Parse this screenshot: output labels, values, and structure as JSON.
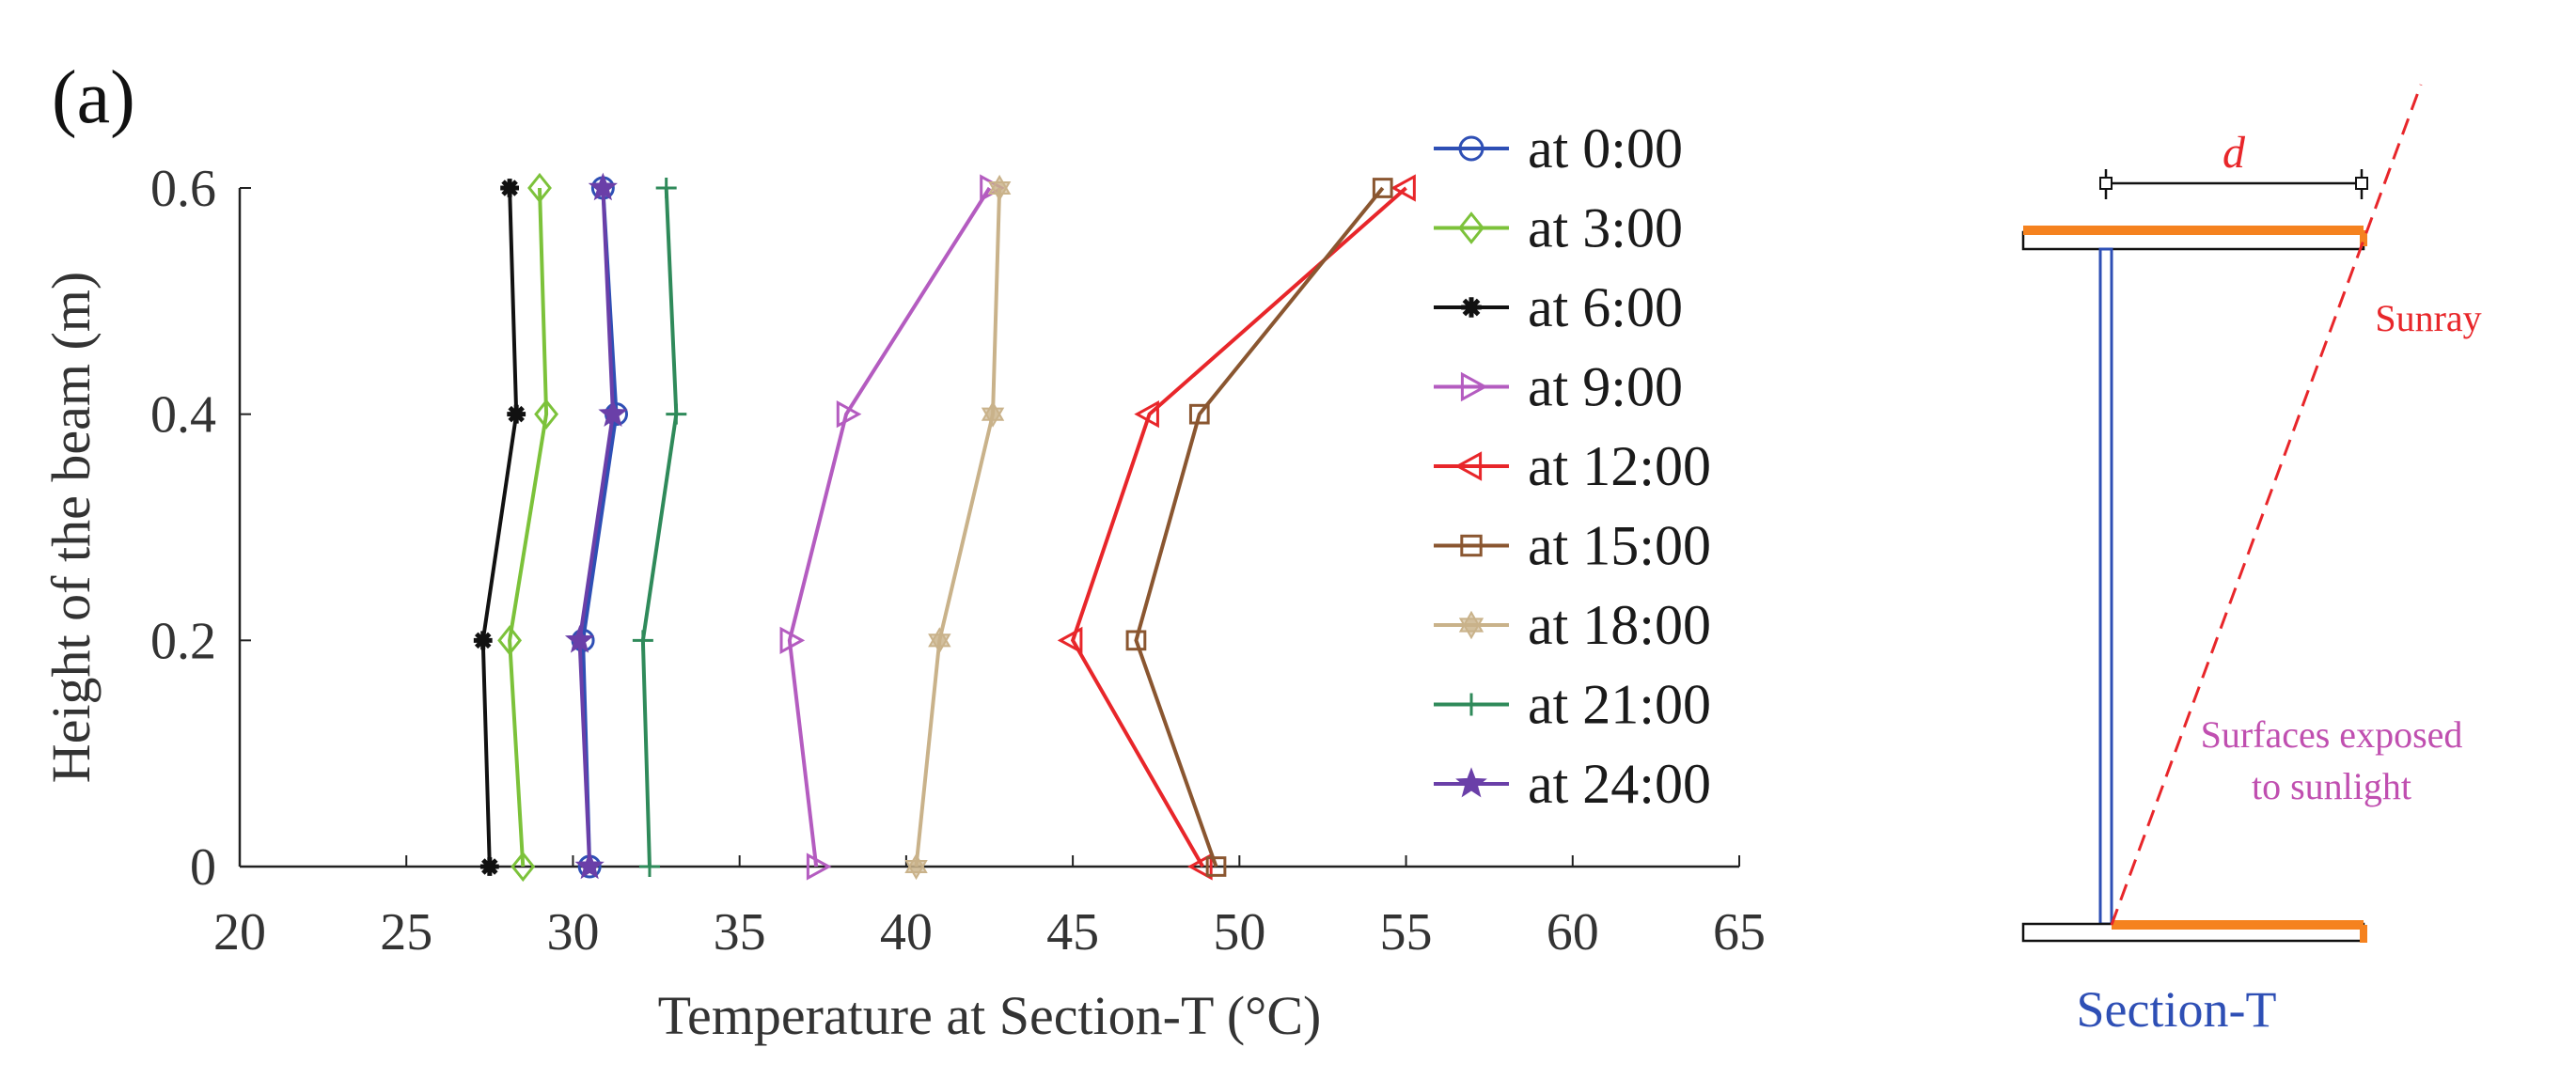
{
  "panel_label": "(a)",
  "chart_data": {
    "type": "line",
    "title": "",
    "xlabel": "Temperature at Section-T (°C)",
    "ylabel": "Height of the beam (m)",
    "xlim": [
      20,
      65
    ],
    "ylim": [
      0,
      0.6
    ],
    "x_ticks": [
      "20",
      "25",
      "30",
      "35",
      "40",
      "45",
      "50",
      "55",
      "60",
      "65"
    ],
    "y_ticks": [
      "0",
      "0.2",
      "0.4",
      "0.6"
    ],
    "x_tick_values": [
      20,
      25,
      30,
      35,
      40,
      45,
      50,
      55,
      60,
      65
    ],
    "y_tick_values": [
      0,
      0.2,
      0.4,
      0.6
    ],
    "heights": [
      0,
      0.2,
      0.4,
      0.6
    ],
    "legend_position": "right",
    "series": [
      {
        "name": "at 0:00",
        "color": "#2e4fb5",
        "marker": "circle",
        "values": [
          30.5,
          30.3,
          31.3,
          30.9
        ]
      },
      {
        "name": "at 3:00",
        "color": "#7cc23a",
        "marker": "diamond",
        "values": [
          28.5,
          28.1,
          29.2,
          29.0
        ]
      },
      {
        "name": "at 6:00",
        "color": "#111111",
        "marker": "asterisk",
        "values": [
          27.5,
          27.3,
          28.3,
          28.1
        ]
      },
      {
        "name": "at 9:00",
        "color": "#b45cc0",
        "marker": "triangle-right",
        "values": [
          37.3,
          36.5,
          38.2,
          42.5
        ]
      },
      {
        "name": "at 12:00",
        "color": "#e8262a",
        "marker": "triangle-left",
        "values": [
          48.9,
          45.0,
          47.3,
          55.0
        ]
      },
      {
        "name": "at 15:00",
        "color": "#8a5630",
        "marker": "square",
        "values": [
          49.3,
          46.9,
          48.8,
          54.3
        ]
      },
      {
        "name": "at 18:00",
        "color": "#c9b28a",
        "marker": "hexagram",
        "values": [
          40.3,
          41.0,
          42.6,
          42.8
        ]
      },
      {
        "name": "at 21:00",
        "color": "#2f8a5a",
        "marker": "plus",
        "values": [
          32.3,
          32.1,
          33.1,
          32.8
        ]
      },
      {
        "name": "at 24:00",
        "color": "#6a3fa8",
        "marker": "star",
        "values": [
          30.5,
          30.2,
          31.2,
          30.9
        ]
      }
    ]
  },
  "diagram": {
    "d_label": "d",
    "sunray_label": "Sunray",
    "surfaces_label_line1": "Surfaces exposed",
    "surfaces_label_line2": "to sunlight",
    "section_label": "Section-T",
    "colors": {
      "flange_exposed": "#f5821f",
      "sunray": "#e8262a",
      "web": "#2e4fb5",
      "surfaces": "#c04fb0",
      "section": "#2e4fb5"
    }
  }
}
